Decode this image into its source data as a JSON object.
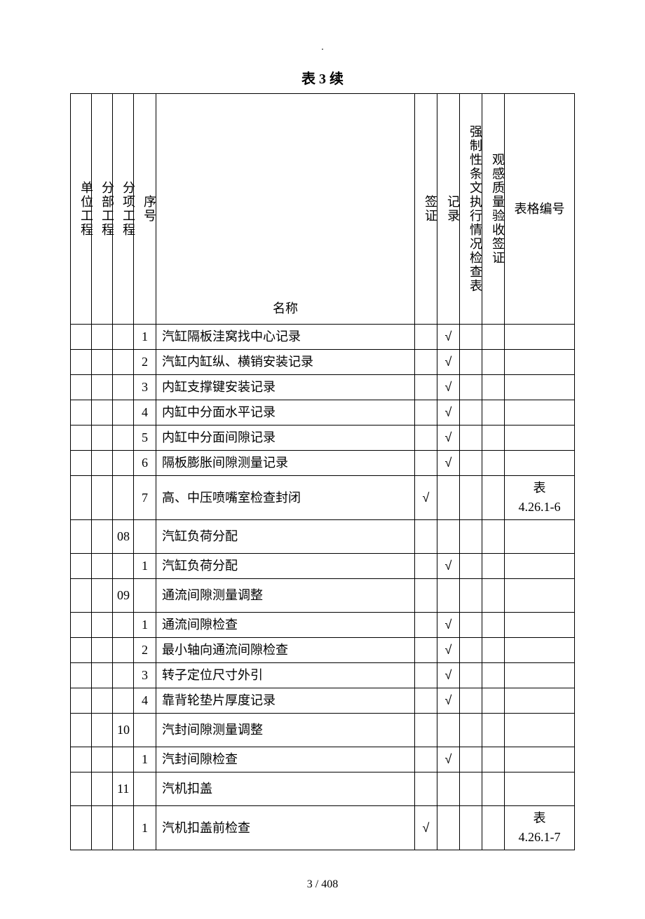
{
  "dot": ".",
  "title": "表 3 续",
  "headers": {
    "unit_project": "单位工程",
    "sub_project": "分部工程",
    "item_project": "分项工程",
    "seq": "序号",
    "name": "名称",
    "visa": "签证",
    "record": "记录",
    "mandatory": "强制性条文执行情况检查表",
    "appearance": "观感质量验收签证",
    "form_no": "表格编号"
  },
  "checkmark": "√",
  "rows": [
    {
      "c1": "",
      "c2": "",
      "c3": "",
      "seq": "1",
      "name": "汽缸隔板洼窝找中心记录",
      "visa": "",
      "record": "√",
      "m": "",
      "a": "",
      "form": ""
    },
    {
      "c1": "",
      "c2": "",
      "c3": "",
      "seq": "2",
      "name": "汽缸内缸纵、横销安装记录",
      "visa": "",
      "record": "√",
      "m": "",
      "a": "",
      "form": ""
    },
    {
      "c1": "",
      "c2": "",
      "c3": "",
      "seq": "3",
      "name": "内缸支撑键安装记录",
      "visa": "",
      "record": "√",
      "m": "",
      "a": "",
      "form": ""
    },
    {
      "c1": "",
      "c2": "",
      "c3": "",
      "seq": "4",
      "name": "内缸中分面水平记录",
      "visa": "",
      "record": "√",
      "m": "",
      "a": "",
      "form": ""
    },
    {
      "c1": "",
      "c2": "",
      "c3": "",
      "seq": "5",
      "name": "内缸中分面间隙记录",
      "visa": "",
      "record": "√",
      "m": "",
      "a": "",
      "form": ""
    },
    {
      "c1": "",
      "c2": "",
      "c3": "",
      "seq": "6",
      "name": "隔板膨胀间隙测量记录",
      "visa": "",
      "record": "√",
      "m": "",
      "a": "",
      "form": ""
    },
    {
      "c1": "",
      "c2": "",
      "c3": "",
      "seq": "7",
      "name": "高、中压喷嘴室检查封闭",
      "visa": "√",
      "record": "",
      "m": "",
      "a": "",
      "form": "表\n4.26.1-6",
      "tall": true
    },
    {
      "c1": "",
      "c2": "",
      "c3": "08",
      "seq": "",
      "name": "汽缸负荷分配",
      "visa": "",
      "record": "",
      "m": "",
      "a": "",
      "form": "",
      "tall": true
    },
    {
      "c1": "",
      "c2": "",
      "c3": "",
      "seq": "1",
      "name": "汽缸负荷分配",
      "visa": "",
      "record": "√",
      "m": "",
      "a": "",
      "form": ""
    },
    {
      "c1": "",
      "c2": "",
      "c3": "09",
      "seq": "",
      "name": "通流间隙测量调整",
      "visa": "",
      "record": "",
      "m": "",
      "a": "",
      "form": "",
      "tall": true
    },
    {
      "c1": "",
      "c2": "",
      "c3": "",
      "seq": "1",
      "name": "通流间隙检查",
      "visa": "",
      "record": "√",
      "m": "",
      "a": "",
      "form": ""
    },
    {
      "c1": "",
      "c2": "",
      "c3": "",
      "seq": "2",
      "name": "最小轴向通流间隙检查",
      "visa": "",
      "record": "√",
      "m": "",
      "a": "",
      "form": ""
    },
    {
      "c1": "",
      "c2": "",
      "c3": "",
      "seq": "3",
      "name": "转子定位尺寸外引",
      "visa": "",
      "record": "√",
      "m": "",
      "a": "",
      "form": ""
    },
    {
      "c1": "",
      "c2": "",
      "c3": "",
      "seq": "4",
      "name": "靠背轮垫片厚度记录",
      "visa": "",
      "record": "√",
      "m": "",
      "a": "",
      "form": ""
    },
    {
      "c1": "",
      "c2": "",
      "c3": "10",
      "seq": "",
      "name": "汽封间隙测量调整",
      "visa": "",
      "record": "",
      "m": "",
      "a": "",
      "form": "",
      "tall": true
    },
    {
      "c1": "",
      "c2": "",
      "c3": "",
      "seq": "1",
      "name": "汽封间隙检查",
      "visa": "",
      "record": "√",
      "m": "",
      "a": "",
      "form": ""
    },
    {
      "c1": "",
      "c2": "",
      "c3": "11",
      "seq": "",
      "name": "汽机扣盖",
      "visa": "",
      "record": "",
      "m": "",
      "a": "",
      "form": "",
      "tall": true
    },
    {
      "c1": "",
      "c2": "",
      "c3": "",
      "seq": "1",
      "name": "汽机扣盖前检查",
      "visa": "√",
      "record": "",
      "m": "",
      "a": "",
      "form": "表\n4.26.1-7",
      "tall": true
    }
  ],
  "footer": "3  / 408"
}
